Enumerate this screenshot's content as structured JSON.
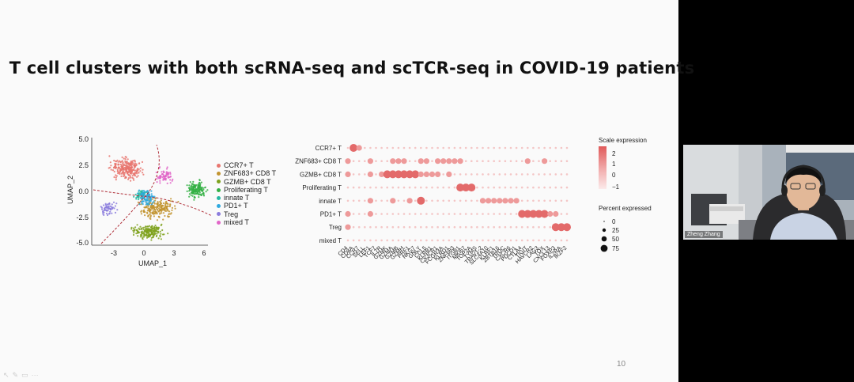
{
  "slide": {
    "title": "T cell clusters with both scRNA-seq and scTCR-seq in COVID-19 patients",
    "page_number": "10",
    "toolbar_icons": [
      "pointer-icon",
      "pen-icon",
      "slides-icon",
      "more-icon"
    ]
  },
  "umap": {
    "xlabel": "UMAP_1",
    "ylabel": "UMAP_2",
    "xticks": [
      "-3",
      "0",
      "3",
      "6"
    ],
    "yticks": [
      "5.0",
      "2.5",
      "0.0",
      "-2.5",
      "-5.0"
    ],
    "legend": [
      {
        "label": "CCR7+ T",
        "color": "#e8766f"
      },
      {
        "label": "ZNF683+ CD8 T",
        "color": "#c29430"
      },
      {
        "label": "GZMB+ CD8 T",
        "color": "#7fa21e"
      },
      {
        "label": "Proliferating T",
        "color": "#34b044"
      },
      {
        "label": "innate T",
        "color": "#26b8a2"
      },
      {
        "label": "PD1+ T",
        "color": "#2fa9df"
      },
      {
        "label": "Treg",
        "color": "#8b7cdd"
      },
      {
        "label": "mixed T",
        "color": "#e166c8"
      }
    ]
  },
  "chart_data": {
    "type": "heatmap",
    "title": "",
    "rows": [
      "CCR7+ T",
      "ZNF683+ CD8 T",
      "GZMB+ CD8 T",
      "Proliferating T",
      "innate T",
      "PD1+ T",
      "Treg",
      "mixed T"
    ],
    "genes": [
      "CD4",
      "CD8A",
      "CCR7",
      "SELL",
      "LEF1",
      "TCF7",
      "IL7R",
      "GZMK",
      "GZMA",
      "GZMB",
      "GZMH",
      "PRF1",
      "NKG7",
      "GNLY",
      "CCL5",
      "KLRB1",
      "CX3CR1",
      "FCGR3A",
      "KLRD1",
      "ZNF683",
      "ITGB1",
      "MKI67",
      "TOP2A",
      "TYMS",
      "TRAV1-2",
      "SLC4A10",
      "KLRF1",
      "ZBTB16",
      "TRDC",
      "CXCR6",
      "PDCD1",
      "CTLA4",
      "TIGIT",
      "HAVCR2",
      "LAG3",
      "TOX",
      "CXCL13",
      "FOXP3",
      "IL2RA",
      "IKZF2"
    ],
    "values": [
      [
        0,
        2,
        1,
        0,
        0,
        0,
        0,
        0,
        0,
        0,
        0,
        0,
        0,
        0,
        0,
        0,
        0,
        0,
        0,
        0,
        0,
        0,
        0,
        0,
        0,
        0,
        0,
        0,
        0,
        0,
        0,
        0,
        0,
        0,
        0,
        0,
        0,
        0,
        0,
        0
      ],
      [
        1,
        0,
        0,
        0,
        1,
        0,
        0,
        0,
        1,
        1,
        1,
        0,
        0,
        1,
        1,
        0,
        1,
        1,
        1,
        1,
        1,
        0,
        0,
        0,
        0,
        0,
        0,
        0,
        0,
        0,
        0,
        0,
        1,
        0,
        0,
        1,
        0,
        0,
        0,
        0
      ],
      [
        1,
        0,
        0,
        0,
        1,
        0,
        1,
        2,
        2,
        2,
        2,
        2,
        2,
        1,
        1,
        1,
        1,
        0,
        1,
        0,
        0,
        0,
        0,
        0,
        0,
        0,
        0,
        0,
        0,
        0,
        0,
        0,
        0,
        0,
        0,
        0,
        0,
        0,
        0,
        0
      ],
      [
        0,
        0,
        0,
        0,
        0,
        0,
        0,
        0,
        0,
        0,
        0,
        0,
        0,
        0,
        0,
        0,
        0,
        0,
        0,
        0,
        2,
        2,
        2,
        0,
        0,
        0,
        0,
        0,
        0,
        0,
        0,
        0,
        0,
        0,
        0,
        0,
        0,
        0,
        0,
        0
      ],
      [
        0,
        0,
        0,
        0,
        1,
        0,
        0,
        0,
        1,
        0,
        0,
        1,
        0,
        2,
        0,
        0,
        0,
        0,
        0,
        0,
        0,
        0,
        0,
        0,
        1,
        1,
        1,
        1,
        1,
        1,
        1,
        0,
        0,
        0,
        0,
        0,
        0,
        0,
        0,
        0
      ],
      [
        1,
        0,
        0,
        0,
        1,
        0,
        0,
        0,
        0,
        0,
        0,
        0,
        0,
        0,
        0,
        0,
        0,
        0,
        0,
        0,
        0,
        0,
        0,
        0,
        0,
        0,
        0,
        0,
        0,
        0,
        0,
        2,
        2,
        2,
        2,
        2,
        1,
        1,
        0,
        0
      ],
      [
        1,
        0,
        0,
        0,
        0,
        0,
        0,
        0,
        0,
        0,
        0,
        0,
        0,
        0,
        0,
        0,
        0,
        0,
        0,
        0,
        0,
        0,
        0,
        0,
        0,
        0,
        0,
        0,
        0,
        0,
        0,
        0,
        0,
        0,
        0,
        0,
        0,
        2,
        2,
        2
      ],
      [
        0,
        0,
        0,
        0,
        0,
        0,
        0,
        0,
        0,
        0,
        0,
        0,
        0,
        0,
        0,
        0,
        0,
        0,
        0,
        0,
        0,
        0,
        0,
        0,
        0,
        0,
        0,
        0,
        0,
        0,
        0,
        0,
        0,
        0,
        0,
        0,
        0,
        0,
        0,
        0
      ]
    ],
    "color_legend_title": "Scale expression",
    "color_ticks": [
      "2",
      "1",
      "0",
      "−1"
    ],
    "size_legend_title": "Percent expressed",
    "size_ticks": [
      "0",
      "25",
      "50",
      "75"
    ]
  },
  "webcam": {
    "participant_name": "Zheng Zhang"
  }
}
